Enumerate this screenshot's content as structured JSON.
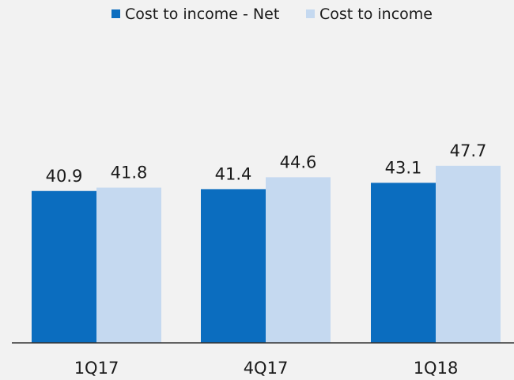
{
  "chart_data": {
    "type": "bar",
    "categories": [
      "1Q17",
      "4Q17",
      "1Q18"
    ],
    "series": [
      {
        "name": "Cost to income - Net",
        "values": [
          40.9,
          41.4,
          43.1
        ],
        "color": "#0b6dbf"
      },
      {
        "name": "Cost to income",
        "values": [
          41.8,
          44.6,
          47.7
        ],
        "color": "#c5d9f0"
      }
    ],
    "value_labels": [
      [
        "40.9",
        "41.4",
        "43.1"
      ],
      [
        "41.8",
        "44.6",
        "47.7"
      ]
    ],
    "ylim": [
      0,
      50
    ],
    "grid": false,
    "legend_position": "top"
  }
}
